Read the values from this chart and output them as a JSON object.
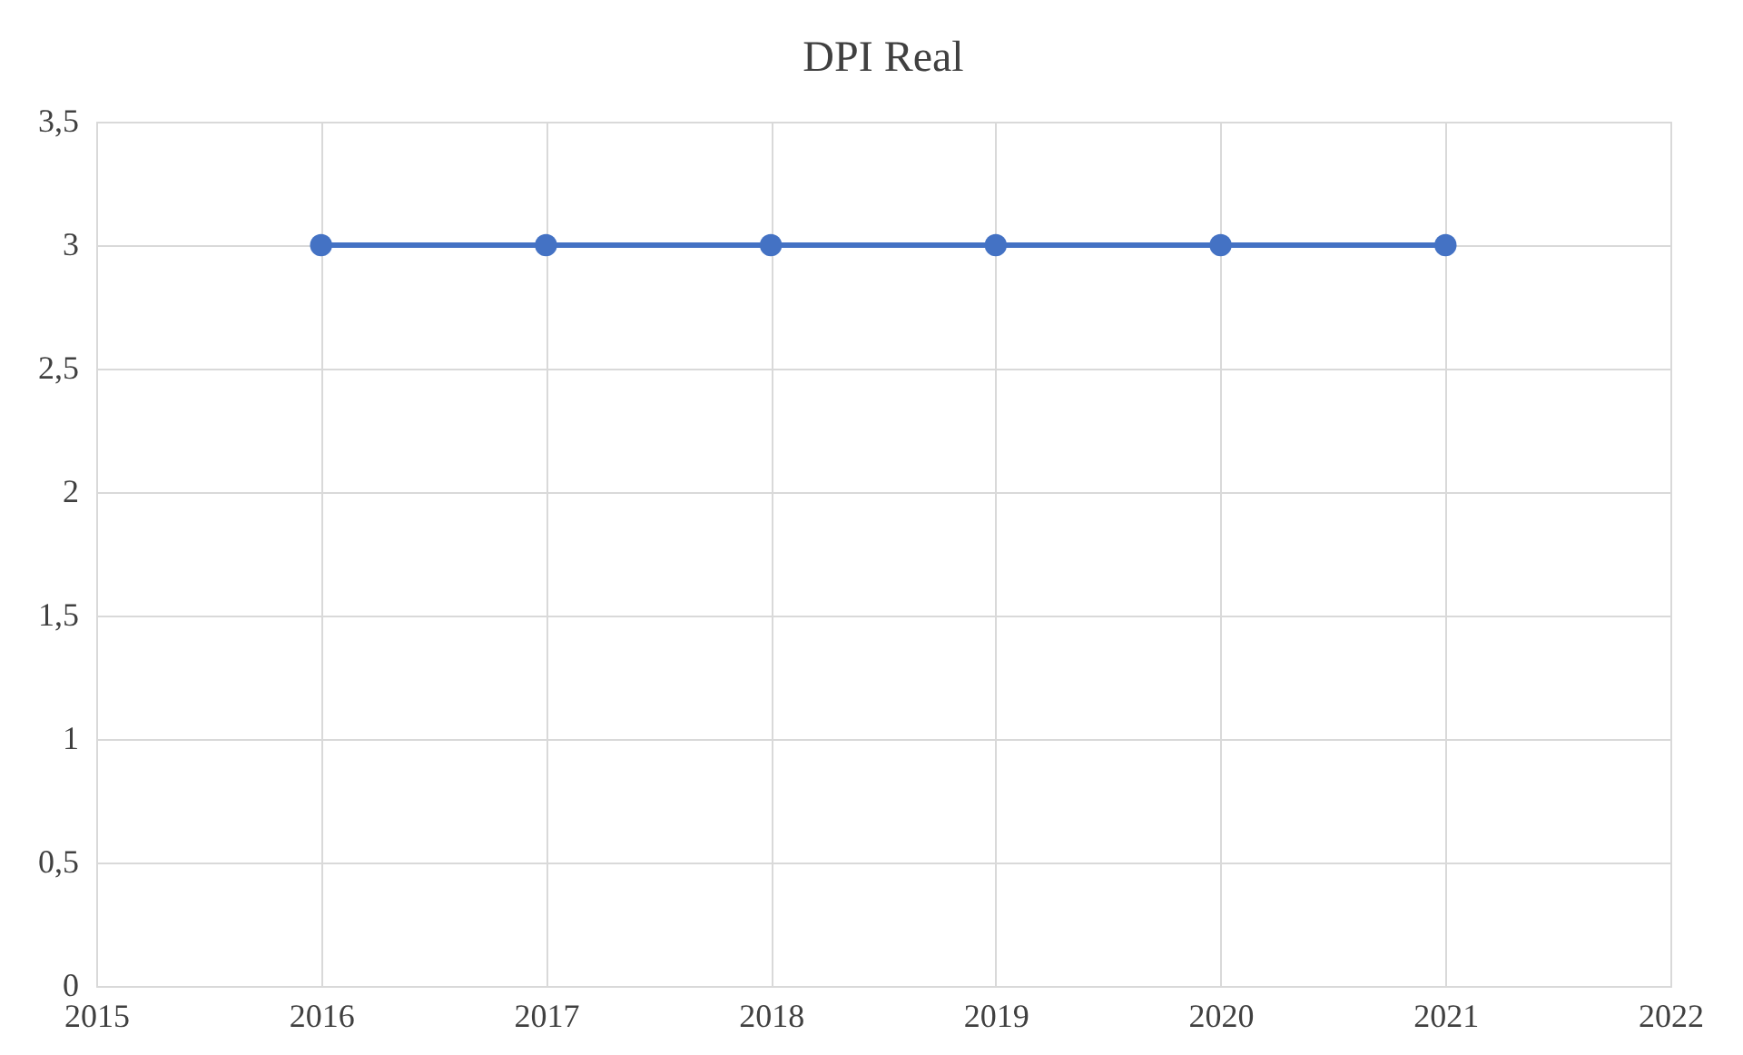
{
  "chart_data": {
    "type": "line",
    "title": "DPI Real",
    "x": [
      2016,
      2017,
      2018,
      2019,
      2020,
      2021
    ],
    "series": [
      {
        "color": "#4472c4",
        "values": [
          3,
          3,
          3,
          3,
          3,
          3
        ]
      }
    ],
    "xlim": [
      2015,
      2022
    ],
    "xticks": [
      2015,
      2016,
      2017,
      2018,
      2019,
      2020,
      2021,
      2022
    ],
    "ylim": [
      0,
      3.5
    ],
    "yticks": [
      0,
      {
        "value": 0.5,
        "label": "0,5"
      },
      1,
      {
        "value": 1.5,
        "label": "1,5"
      },
      2,
      {
        "value": 2.5,
        "label": "2,5"
      },
      3,
      {
        "value": 3.5,
        "label": "3,5"
      }
    ],
    "grid": true,
    "marker": "circle",
    "line_style": "solid"
  }
}
